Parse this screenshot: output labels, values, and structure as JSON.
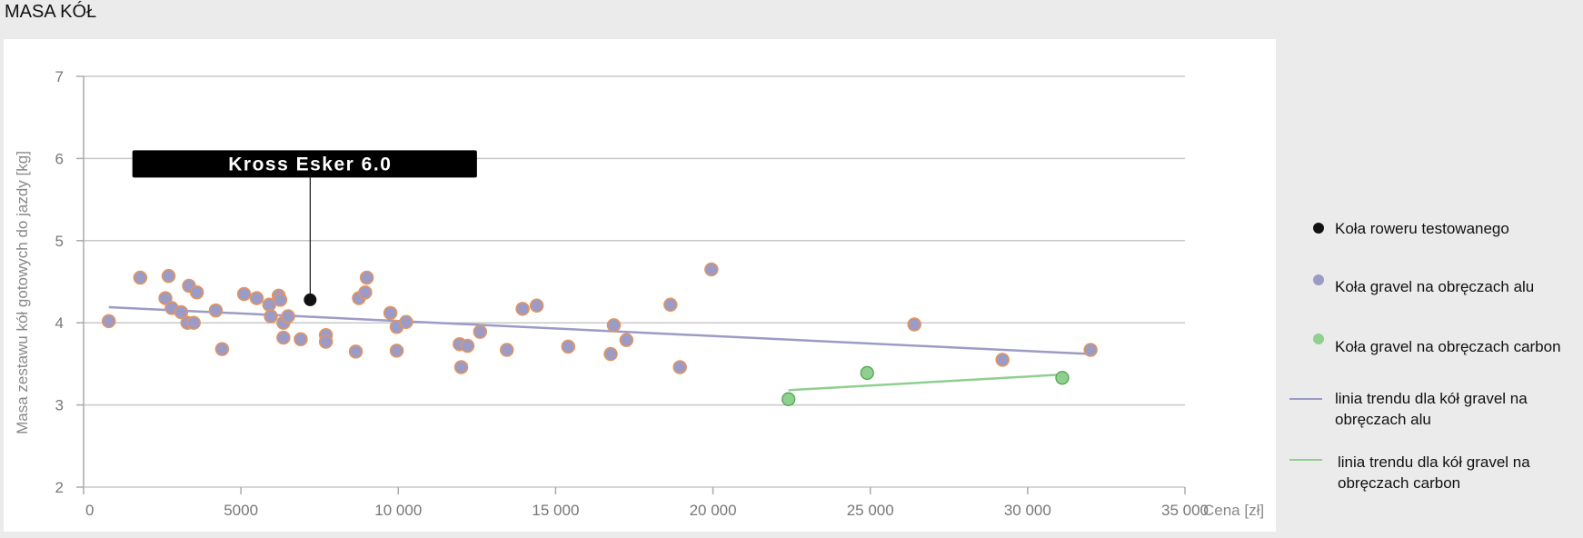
{
  "page": {
    "title": "MASA KÓŁ"
  },
  "colors": {
    "tested": "#111111",
    "alu_fill": "#9b9bc6",
    "alu_stroke": "#e6955a",
    "carbon_fill": "#8fcf8f",
    "carbon_stroke": "#4aa24a",
    "trend_alu": "#9b9bc6",
    "trend_carbon": "#8fcf8f",
    "grid": "#c8c8c8",
    "callout_bg": "#000000",
    "callout_text": "#ffffff"
  },
  "legend": {
    "items": [
      {
        "key": "tested",
        "label": "Koła roweru testowanego",
        "marker": "dot"
      },
      {
        "key": "alu",
        "label": "Koła gravel na obręczach alu",
        "marker": "dot"
      },
      {
        "key": "carbon",
        "label": "Koła gravel na obręczach carbon",
        "marker": "dot"
      },
      {
        "key": "trend_alu",
        "label_lines": [
          "linia trendu dla kół gravel na",
          "obręczach alu"
        ],
        "marker": "line"
      },
      {
        "key": "trend_carbon",
        "label_lines": [
          "linia trendu dla kół gravel na",
          "obręczach carbon"
        ],
        "marker": "line"
      }
    ]
  },
  "chart_data": {
    "type": "scatter",
    "title": "",
    "xlabel": "Cena [zł]",
    "ylabel": "Masa zestawu kół gotowych do jazdy [kg]",
    "xlim": [
      0,
      35000
    ],
    "ylim": [
      2,
      7
    ],
    "x_ticks": [
      0,
      5000,
      10000,
      15000,
      20000,
      25000,
      30000,
      35000
    ],
    "x_tick_labels": [
      "0",
      "5000",
      "10 000",
      "15 000",
      "20 000",
      "25 000",
      "30 000",
      "35 000"
    ],
    "y_ticks": [
      2,
      3,
      4,
      5,
      6,
      7
    ],
    "y_tick_labels": [
      "2",
      "3",
      "4",
      "5",
      "6",
      "7"
    ],
    "grid": true,
    "legend_position": "right",
    "annotation": {
      "label": "Kross Esker 6.0",
      "x": 7200,
      "y": 4.28
    },
    "series": [
      {
        "name": "Koła roweru testowanego",
        "points": [
          [
            7200,
            4.28
          ]
        ]
      },
      {
        "name": "Koła gravel na obręczach alu",
        "points": [
          [
            800,
            4.02
          ],
          [
            1800,
            4.55
          ],
          [
            2600,
            4.3
          ],
          [
            2700,
            4.57
          ],
          [
            2800,
            4.18
          ],
          [
            3100,
            4.13
          ],
          [
            3300,
            4.0
          ],
          [
            3350,
            4.45
          ],
          [
            3500,
            4.0
          ],
          [
            3600,
            4.37
          ],
          [
            4200,
            4.15
          ],
          [
            4400,
            3.68
          ],
          [
            5100,
            4.35
          ],
          [
            5500,
            4.3
          ],
          [
            5900,
            4.22
          ],
          [
            5950,
            4.08
          ],
          [
            6200,
            4.33
          ],
          [
            6250,
            4.28
          ],
          [
            6350,
            4.0
          ],
          [
            6350,
            3.82
          ],
          [
            6500,
            4.08
          ],
          [
            6900,
            3.8
          ],
          [
            7700,
            3.85
          ],
          [
            7700,
            3.77
          ],
          [
            8650,
            3.65
          ],
          [
            8750,
            4.3
          ],
          [
            8950,
            4.37
          ],
          [
            9000,
            4.55
          ],
          [
            9750,
            4.12
          ],
          [
            9950,
            3.95
          ],
          [
            9950,
            3.66
          ],
          [
            10250,
            4.01
          ],
          [
            11950,
            3.74
          ],
          [
            12000,
            3.46
          ],
          [
            12200,
            3.72
          ],
          [
            12600,
            3.89
          ],
          [
            13450,
            3.67
          ],
          [
            13950,
            4.17
          ],
          [
            14400,
            4.21
          ],
          [
            15400,
            3.71
          ],
          [
            16750,
            3.62
          ],
          [
            16850,
            3.97
          ],
          [
            17250,
            3.79
          ],
          [
            18650,
            4.22
          ],
          [
            18950,
            3.46
          ],
          [
            19950,
            4.65
          ],
          [
            26400,
            3.98
          ],
          [
            29200,
            3.55
          ],
          [
            32000,
            3.67
          ]
        ]
      },
      {
        "name": "Koła gravel na obręczach carbon",
        "points": [
          [
            22400,
            3.07
          ],
          [
            24900,
            3.39
          ],
          [
            31100,
            3.33
          ]
        ]
      },
      {
        "name": "linia trendu dla kół gravel na obręczach alu",
        "type": "line",
        "points": [
          [
            800,
            4.19
          ],
          [
            32000,
            3.62
          ]
        ]
      },
      {
        "name": "linia trendu dla kół gravel na obręczach carbon",
        "type": "line",
        "points": [
          [
            22400,
            3.18
          ],
          [
            31100,
            3.37
          ]
        ]
      }
    ]
  }
}
